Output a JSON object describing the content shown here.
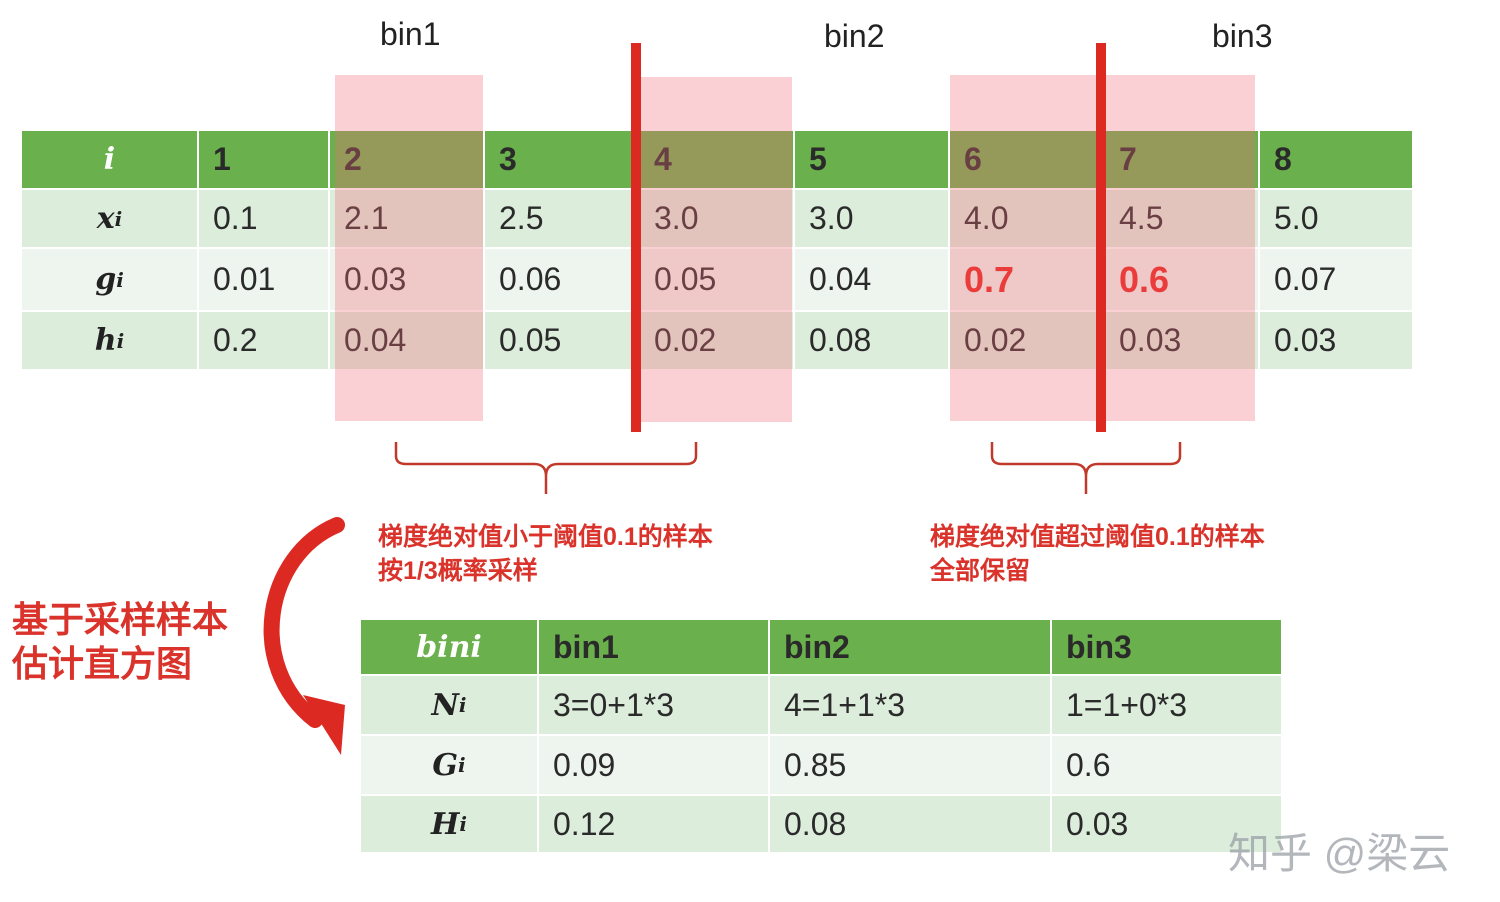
{
  "bins": [
    "bin1",
    "bin2",
    "bin3"
  ],
  "top_table": {
    "row_labels": [
      "i",
      "x",
      "g",
      "h"
    ],
    "subscript": "i",
    "indices": [
      "1",
      "2",
      "3",
      "4",
      "5",
      "6",
      "7",
      "8"
    ],
    "x": [
      "0.1",
      "2.1",
      "2.5",
      "3.0",
      "3.0",
      "4.0",
      "4.5",
      "5.0"
    ],
    "g": [
      "0.01",
      "0.03",
      "0.06",
      "0.05",
      "0.04",
      "0.7",
      "0.6",
      "0.07"
    ],
    "h": [
      "0.2",
      "0.04",
      "0.05",
      "0.02",
      "0.08",
      "0.02",
      "0.03",
      "0.03"
    ]
  },
  "notes": {
    "left_line1": "梯度绝对值小于阈值0.1的样本",
    "left_line2": "按1/3概率采样",
    "right_line1": "梯度绝对值超过阈值0.1的样本",
    "right_line2": "全部保留",
    "side_line1": "基于采样样本",
    "side_line2": "估计直方图"
  },
  "bottom_table": {
    "header_label": "bini",
    "headers": [
      "bin1",
      "bin2",
      "bin3"
    ],
    "row_labels": [
      "N",
      "G",
      "H"
    ],
    "subscript": "i",
    "N": [
      "3=0+1*3",
      "4=1+1*3",
      "1=1+0*3"
    ],
    "G": [
      "0.09",
      "0.85",
      "0.6"
    ],
    "H": [
      "0.12",
      "0.08",
      "0.03"
    ]
  },
  "watermark": "知乎 @梁云",
  "colors": {
    "header_green": "#6ab04c",
    "highlight_red": "#e8261c",
    "divider_red": "#dc2a22"
  }
}
